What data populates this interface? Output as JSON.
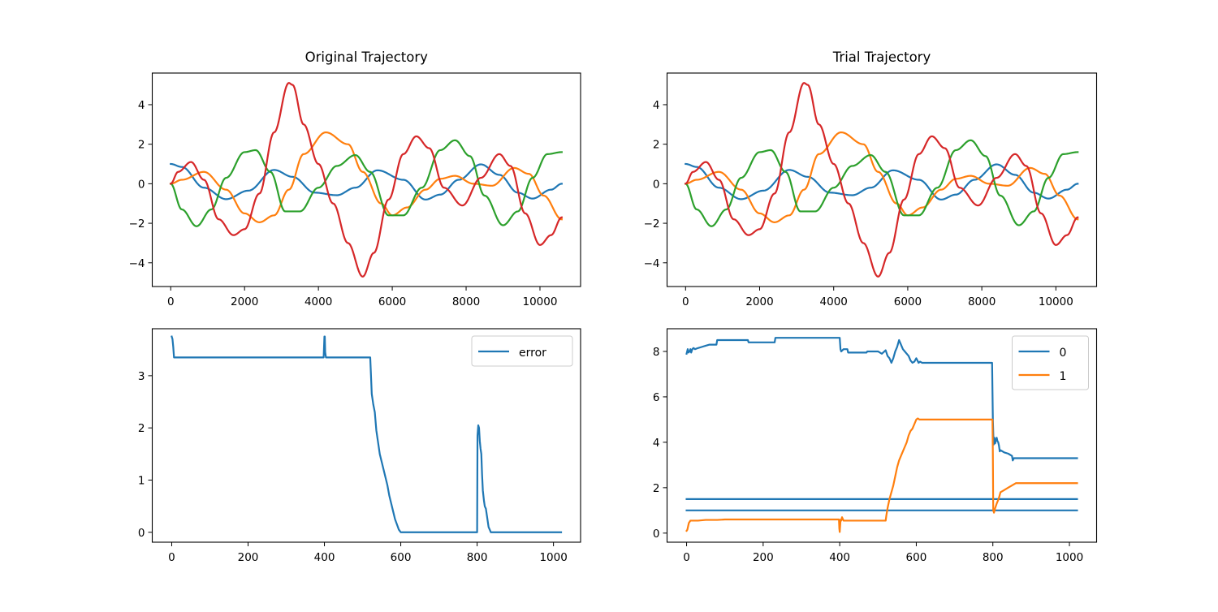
{
  "chart_data": [
    {
      "type": "line",
      "title": "Original Trajectory",
      "xlabel": "",
      "ylabel": "",
      "xlim": [
        -500,
        11100
      ],
      "ylim": [
        -5.2,
        5.6
      ],
      "xticks": [
        0,
        2000,
        4000,
        6000,
        8000,
        10000
      ],
      "yticks": [
        -4,
        -2,
        0,
        2,
        4
      ],
      "ytick_labels": [
        "−4",
        "−2",
        "0",
        "2",
        "4"
      ],
      "legend": "none",
      "x_range": [
        0,
        10590
      ],
      "series": [
        {
          "color": "#1f77b4",
          "x": [
            0,
            300,
            900,
            1500,
            2100,
            2800,
            3300,
            3900,
            4500,
            5000,
            5600,
            6300,
            6900,
            7300,
            7800,
            8400,
            8900,
            9400,
            9800,
            10300,
            10590
          ],
          "y": [
            1.0,
            0.85,
            -0.2,
            -0.78,
            -0.35,
            0.7,
            0.35,
            -0.45,
            -0.58,
            -0.2,
            0.68,
            0.2,
            -0.8,
            -0.55,
            0.2,
            0.98,
            0.45,
            -0.45,
            -0.75,
            -0.3,
            0.0
          ]
        },
        {
          "color": "#ff7f0e",
          "x": [
            0,
            300,
            900,
            1500,
            2000,
            2400,
            2800,
            3200,
            3600,
            4200,
            4800,
            5200,
            5700,
            6000,
            6400,
            6900,
            7300,
            7700,
            8200,
            8700,
            9300,
            9700,
            10100,
            10590
          ],
          "y": [
            0.0,
            0.2,
            0.6,
            -0.3,
            -1.5,
            -1.95,
            -1.6,
            -0.3,
            1.5,
            2.6,
            2.0,
            0.6,
            -1.0,
            -1.6,
            -1.2,
            -0.3,
            0.25,
            0.4,
            0.0,
            -0.1,
            0.8,
            0.5,
            -0.6,
            -1.8
          ]
        },
        {
          "color": "#2ca02c",
          "x": [
            0,
            300,
            700,
            1100,
            1500,
            2000,
            2300,
            2700,
            3100,
            3500,
            4000,
            4500,
            5000,
            5400,
            5900,
            6300,
            6800,
            7300,
            7700,
            8100,
            8500,
            9000,
            9400,
            9800,
            10200,
            10590
          ],
          "y": [
            0.0,
            -1.3,
            -2.15,
            -1.3,
            0.3,
            1.6,
            1.7,
            0.6,
            -1.4,
            -1.4,
            -0.2,
            0.9,
            1.45,
            0.6,
            -1.6,
            -1.6,
            -0.2,
            1.7,
            2.2,
            1.4,
            -0.6,
            -2.1,
            -1.4,
            0.3,
            1.5,
            1.6
          ]
        },
        {
          "color": "#d62728",
          "x": [
            0,
            200,
            550,
            900,
            1300,
            1700,
            2000,
            2400,
            2800,
            3200,
            3300,
            3600,
            4000,
            4400,
            4800,
            5200,
            5500,
            5900,
            6300,
            6650,
            7000,
            7400,
            7900,
            8400,
            8900,
            9200,
            9600,
            10000,
            10300,
            10590
          ],
          "y": [
            0.0,
            0.6,
            1.1,
            0.2,
            -1.8,
            -2.6,
            -2.3,
            -0.5,
            2.6,
            5.1,
            5.0,
            3.0,
            1.0,
            -1.0,
            -3.0,
            -4.7,
            -3.5,
            -0.8,
            1.5,
            2.4,
            1.8,
            -0.2,
            -1.1,
            0.3,
            1.5,
            0.9,
            -1.5,
            -3.1,
            -2.6,
            -1.7
          ]
        }
      ]
    },
    {
      "type": "line",
      "title": "Trial Trajectory",
      "xlabel": "",
      "ylabel": "",
      "xlim": [
        -500,
        11100
      ],
      "ylim": [
        -5.2,
        5.6
      ],
      "xticks": [
        0,
        2000,
        4000,
        6000,
        8000,
        10000
      ],
      "yticks": [
        -4,
        -2,
        0,
        2,
        4
      ],
      "ytick_labels": [
        "−4",
        "−2",
        "0",
        "2",
        "4"
      ],
      "legend": "none",
      "x_range": [
        0,
        10590
      ],
      "series": [
        {
          "color": "#1f77b4",
          "x": [
            0,
            300,
            900,
            1500,
            2100,
            2800,
            3300,
            3900,
            4500,
            5000,
            5600,
            6300,
            6900,
            7300,
            7800,
            8400,
            8900,
            9400,
            9800,
            10300,
            10590
          ],
          "y": [
            1.0,
            0.85,
            -0.2,
            -0.78,
            -0.35,
            0.7,
            0.35,
            -0.45,
            -0.58,
            -0.2,
            0.68,
            0.2,
            -0.8,
            -0.55,
            0.2,
            0.98,
            0.45,
            -0.45,
            -0.75,
            -0.3,
            0.0
          ]
        },
        {
          "color": "#ff7f0e",
          "x": [
            0,
            300,
            900,
            1500,
            2000,
            2400,
            2800,
            3200,
            3600,
            4200,
            4800,
            5200,
            5700,
            6000,
            6400,
            6900,
            7300,
            7700,
            8200,
            8700,
            9300,
            9700,
            10100,
            10590
          ],
          "y": [
            0.0,
            0.2,
            0.6,
            -0.3,
            -1.5,
            -1.95,
            -1.6,
            -0.3,
            1.5,
            2.6,
            2.0,
            0.6,
            -1.0,
            -1.6,
            -1.2,
            -0.3,
            0.25,
            0.4,
            0.0,
            -0.1,
            0.8,
            0.5,
            -0.6,
            -1.8
          ]
        },
        {
          "color": "#2ca02c",
          "x": [
            0,
            300,
            700,
            1100,
            1500,
            2000,
            2300,
            2700,
            3100,
            3500,
            4000,
            4500,
            5000,
            5400,
            5900,
            6300,
            6800,
            7300,
            7700,
            8100,
            8500,
            9000,
            9400,
            9800,
            10200,
            10590
          ],
          "y": [
            0.0,
            -1.3,
            -2.15,
            -1.3,
            0.3,
            1.6,
            1.7,
            0.6,
            -1.4,
            -1.4,
            -0.2,
            0.9,
            1.45,
            0.6,
            -1.6,
            -1.6,
            -0.2,
            1.7,
            2.2,
            1.4,
            -0.6,
            -2.1,
            -1.4,
            0.3,
            1.5,
            1.6
          ]
        },
        {
          "color": "#d62728",
          "x": [
            0,
            200,
            550,
            900,
            1300,
            1700,
            2000,
            2400,
            2800,
            3200,
            3300,
            3600,
            4000,
            4400,
            4800,
            5200,
            5500,
            5900,
            6300,
            6650,
            7000,
            7400,
            7900,
            8400,
            8900,
            9200,
            9600,
            10000,
            10300,
            10590
          ],
          "y": [
            0.0,
            0.6,
            1.1,
            0.2,
            -1.8,
            -2.6,
            -2.3,
            -0.5,
            2.6,
            5.1,
            5.0,
            3.0,
            1.0,
            -1.0,
            -3.0,
            -4.7,
            -3.5,
            -0.8,
            1.5,
            2.4,
            1.8,
            -0.2,
            -1.1,
            0.3,
            1.5,
            0.9,
            -1.5,
            -3.1,
            -2.6,
            -1.7
          ]
        }
      ]
    },
    {
      "type": "line",
      "title": "",
      "xlabel": "",
      "ylabel": "",
      "xlim": [
        -51,
        1071
      ],
      "ylim": [
        -0.19,
        3.9
      ],
      "xticks": [
        0,
        200,
        400,
        600,
        800,
        1000
      ],
      "yticks": [
        0,
        1,
        2,
        3
      ],
      "ytick_labels": [
        "0",
        "1",
        "2",
        "3"
      ],
      "legend": "top-right",
      "series": [
        {
          "name": "error",
          "color": "#1f77b4",
          "x": [
            0,
            2,
            4,
            6,
            8,
            10,
            398,
            400,
            401,
            402,
            404,
            405,
            406,
            520,
            522,
            524,
            528,
            532,
            536,
            540,
            545,
            550,
            555,
            560,
            565,
            570,
            575,
            580,
            585,
            590,
            595,
            600,
            700,
            799,
            800,
            801,
            803,
            805,
            807,
            809,
            811,
            813,
            815,
            818,
            820,
            823,
            826,
            830,
            833,
            836,
            840,
            1020
          ],
          "y": [
            3.75,
            3.7,
            3.55,
            3.35,
            3.35,
            3.35,
            3.35,
            3.75,
            3.75,
            3.45,
            3.35,
            3.35,
            3.35,
            3.35,
            3.0,
            2.65,
            2.45,
            2.3,
            1.95,
            1.75,
            1.5,
            1.35,
            1.2,
            1.05,
            0.9,
            0.7,
            0.55,
            0.4,
            0.25,
            0.15,
            0.05,
            0.0,
            0.0,
            0.0,
            0.0,
            1.85,
            2.05,
            2.0,
            1.75,
            1.6,
            1.5,
            1.1,
            0.8,
            0.6,
            0.5,
            0.45,
            0.3,
            0.1,
            0.05,
            0.0,
            0.0,
            0.0
          ]
        }
      ]
    },
    {
      "type": "line",
      "title": "",
      "xlabel": "",
      "ylabel": "",
      "xlim": [
        -51,
        1071
      ],
      "ylim": [
        -0.4,
        9.0
      ],
      "xticks": [
        0,
        200,
        400,
        600,
        800,
        1000
      ],
      "yticks": [
        0,
        2,
        4,
        6,
        8
      ],
      "ytick_labels": [
        "0",
        "2",
        "4",
        "6",
        "8"
      ],
      "legend": "top-right",
      "series": [
        {
          "name": "0",
          "color": "#1f77b4",
          "x": [
            0,
            3,
            5,
            8,
            10,
            12,
            15,
            18,
            22,
            30,
            40,
            50,
            60,
            70,
            78,
            80,
            160,
            162,
            230,
            232,
            398,
            400,
            402,
            404,
            410,
            420,
            422,
            470,
            472,
            490,
            500,
            510,
            520,
            525,
            530,
            535,
            540,
            545,
            550,
            555,
            560,
            565,
            570,
            575,
            580,
            585,
            590,
            595,
            600,
            603,
            606,
            610,
            615,
            620,
            625,
            680,
            700,
            720,
            740,
            760,
            780,
            798,
            800,
            802,
            804,
            806,
            808,
            810,
            812,
            814,
            816,
            818,
            820,
            830,
            840,
            850,
            852,
            855,
            860,
            1020
          ],
          "y": [
            7.9,
            8.1,
            7.95,
            8.0,
            8.1,
            7.95,
            8.1,
            8.15,
            8.1,
            8.15,
            8.2,
            8.25,
            8.3,
            8.3,
            8.3,
            8.5,
            8.5,
            8.4,
            8.4,
            8.6,
            8.6,
            8.6,
            8.1,
            8.0,
            8.1,
            8.1,
            7.95,
            7.95,
            8.0,
            8.0,
            8.0,
            7.9,
            8.05,
            7.8,
            7.7,
            7.5,
            7.7,
            8.0,
            8.2,
            8.5,
            8.3,
            8.1,
            8.0,
            7.9,
            7.8,
            7.6,
            7.5,
            7.55,
            7.7,
            7.6,
            7.5,
            7.55,
            7.5,
            7.5,
            7.5,
            7.5,
            7.5,
            7.5,
            7.5,
            7.5,
            7.5,
            7.5,
            5.0,
            3.9,
            4.2,
            3.95,
            4.1,
            4.2,
            4.05,
            4.0,
            3.85,
            3.6,
            3.65,
            3.55,
            3.5,
            3.4,
            3.2,
            3.3,
            3.3,
            3.3
          ]
        },
        {
          "name": "",
          "color": "#1f77b4",
          "x": [
            0,
            1020
          ],
          "y": [
            1.5,
            1.5
          ]
        },
        {
          "name": "",
          "color": "#1f77b4",
          "x": [
            0,
            1020
          ],
          "y": [
            1.0,
            1.0
          ]
        },
        {
          "name": "1",
          "color": "#ff7f0e",
          "x": [
            0,
            2,
            4,
            6,
            8,
            10,
            20,
            30,
            50,
            80,
            100,
            200,
            300,
            398,
            399,
            400,
            401,
            402,
            403,
            404,
            406,
            410,
            450,
            520,
            522,
            525,
            530,
            535,
            540,
            545,
            550,
            555,
            560,
            565,
            570,
            575,
            580,
            585,
            590,
            595,
            600,
            604,
            608,
            620,
            700,
            799,
            800,
            801,
            803,
            806,
            810,
            815,
            820,
            830,
            840,
            850,
            860,
            870,
            900,
            1020
          ],
          "y": [
            0.1,
            0.15,
            0.3,
            0.45,
            0.5,
            0.55,
            0.55,
            0.55,
            0.58,
            0.58,
            0.6,
            0.6,
            0.6,
            0.6,
            0.2,
            0.05,
            0.3,
            0.55,
            0.6,
            0.55,
            0.7,
            0.55,
            0.55,
            0.55,
            0.8,
            1.1,
            1.5,
            1.8,
            2.1,
            2.5,
            2.9,
            3.2,
            3.4,
            3.6,
            3.8,
            4.0,
            4.3,
            4.5,
            4.6,
            4.8,
            5.0,
            5.05,
            5.0,
            5.0,
            5.0,
            5.0,
            3.5,
            1.0,
            0.9,
            1.1,
            1.3,
            1.5,
            1.8,
            1.9,
            2.0,
            2.1,
            2.2,
            2.2,
            2.2,
            2.2
          ]
        }
      ]
    }
  ]
}
